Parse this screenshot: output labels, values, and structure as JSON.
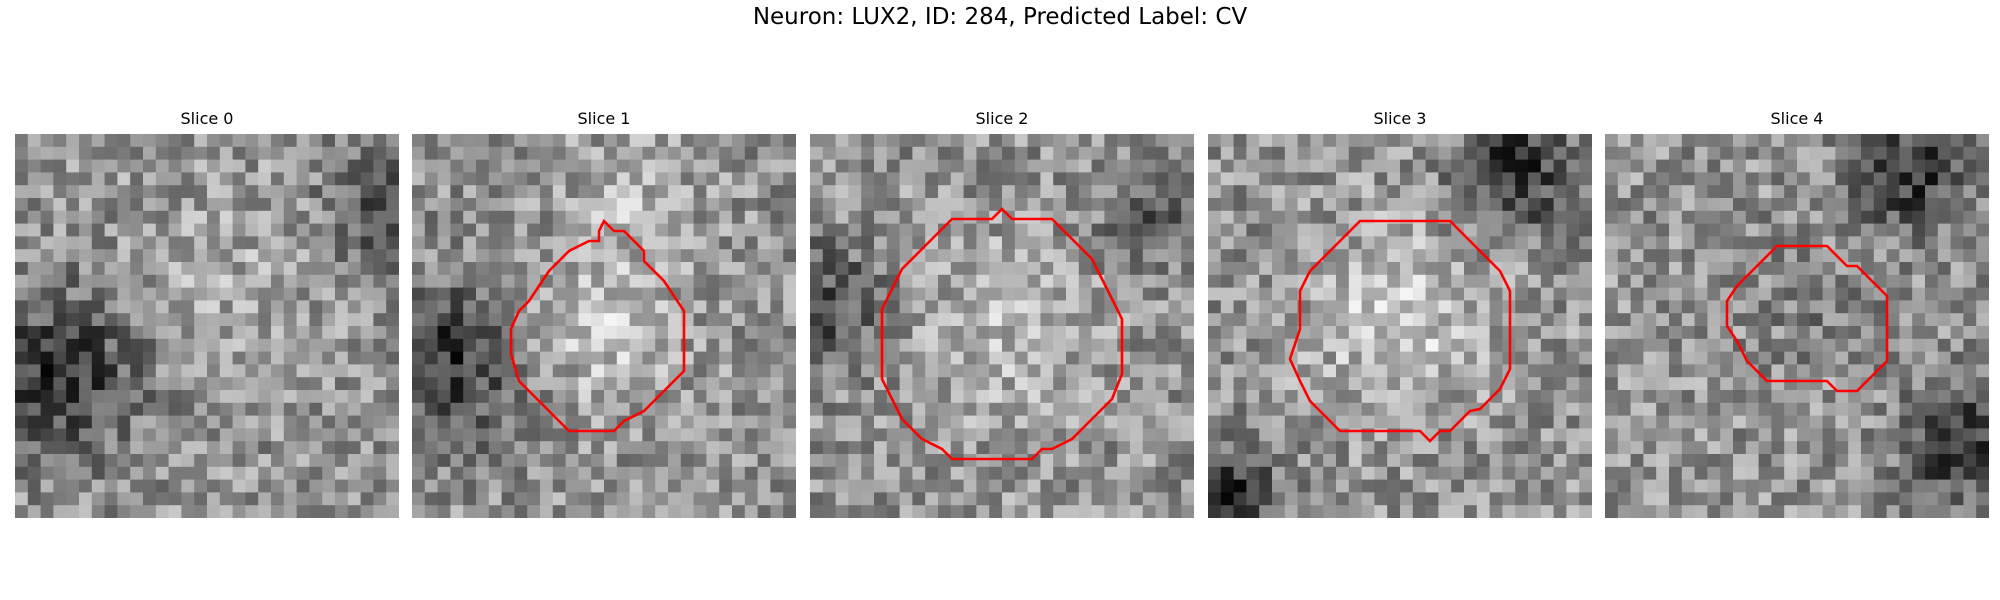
{
  "figure": {
    "title": "Neuron: LUX2, ID: 284, Predicted Label: CV"
  },
  "panels": [
    {
      "title": "Slice 0",
      "has_contour": false,
      "contour_color": "#ff0000"
    },
    {
      "title": "Slice 1",
      "has_contour": true,
      "contour_color": "#ff0000"
    },
    {
      "title": "Slice 2",
      "has_contour": true,
      "contour_color": "#ff0000"
    },
    {
      "title": "Slice 3",
      "has_contour": true,
      "contour_color": "#ff0000"
    },
    {
      "title": "Slice 4",
      "has_contour": true,
      "contour_color": "#ff0000"
    }
  ],
  "colormap": "gray"
}
